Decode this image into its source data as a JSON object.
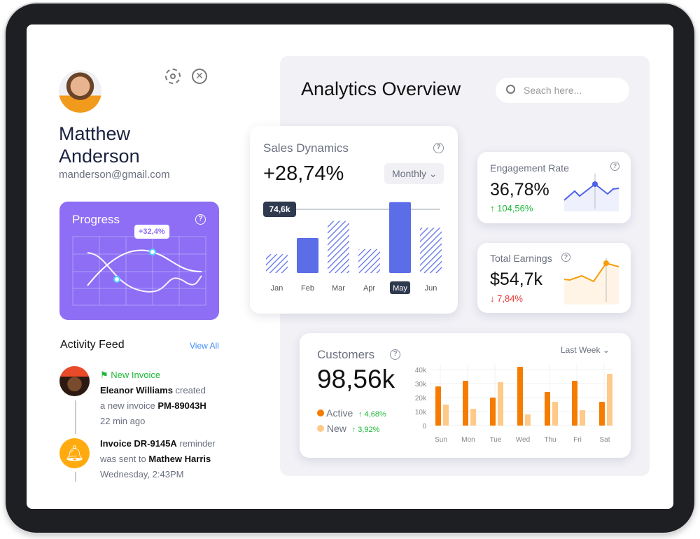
{
  "profile": {
    "name_line1": "Matthew",
    "name_line2": "Anderson",
    "email": "manderson@gmail.com"
  },
  "progress": {
    "title": "Progress",
    "tooltip": "+32,4%"
  },
  "activity": {
    "title": "Activity Feed",
    "view_all": "View All",
    "items": [
      {
        "tag": "New Invoice",
        "actor": "Eleanor Williams",
        "text1": " created",
        "text2": "a new invoice ",
        "ref": "PM-89043H",
        "time": "22 min ago"
      },
      {
        "ref": "Invoice DR-9145A",
        "text1": " reminder",
        "text2": "was sent to ",
        "actor": "Mathew Harris",
        "time": "Wednesday, 2:43PM"
      }
    ]
  },
  "main": {
    "title": "Analytics Overview",
    "search_placeholder": "Seach here..."
  },
  "sales": {
    "title": "Sales Dynamics",
    "value": "+28,74%",
    "period": "Monthly",
    "marker": "74,6k",
    "chart_data": {
      "type": "bar",
      "categories": [
        "Jan",
        "Feb",
        "Mar",
        "Apr",
        "May",
        "Jun"
      ],
      "values": [
        22,
        41,
        61,
        28,
        83,
        53
      ],
      "solid": [
        false,
        true,
        false,
        false,
        true,
        false
      ],
      "selected": "May",
      "reference_line": 74.6,
      "color": "#5b6ee8"
    }
  },
  "engagement": {
    "title": "Engagement Rate",
    "value": "36,78%",
    "change": "104,56%",
    "direction": "up",
    "color": "#4f63e8"
  },
  "earnings": {
    "title": "Total Earnings",
    "value": "$54,7k",
    "change": "7,84%",
    "direction": "down",
    "color": "#f59e0b"
  },
  "customers": {
    "title": "Customers",
    "value": "98,56k",
    "period": "Last Week",
    "legend": [
      {
        "label": "Active",
        "change": "4,68%",
        "color": "#f57c00"
      },
      {
        "label": "New",
        "change": "3,92%",
        "color": "#ffc98a"
      }
    ],
    "chart_data": {
      "type": "bar",
      "categories": [
        "Sun",
        "Mon",
        "Tue",
        "Wed",
        "Thu",
        "Fri",
        "Sat"
      ],
      "yticks": [
        "0",
        "10k",
        "20k",
        "30k",
        "40k"
      ],
      "ylim": [
        0,
        40
      ],
      "series": [
        {
          "name": "Active",
          "values": [
            28,
            32,
            20,
            42,
            24,
            32,
            17
          ]
        },
        {
          "name": "New",
          "values": [
            15,
            12,
            31,
            8,
            17,
            11,
            37
          ]
        }
      ]
    }
  }
}
